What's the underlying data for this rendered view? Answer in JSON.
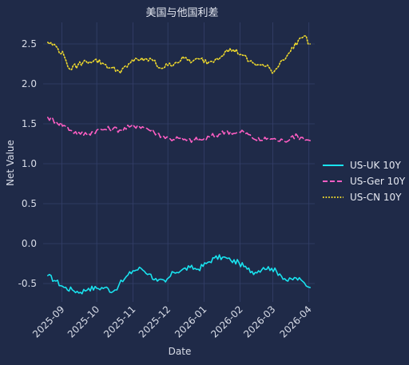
{
  "chart_data": {
    "type": "line",
    "title": "美国与他国利差",
    "xlabel": "Date",
    "ylabel": "Net Value",
    "x_range": [
      "2025-08-16",
      "2026-04-06"
    ],
    "ylim": [
      -0.73,
      2.77
    ],
    "y_ticks": [
      -0.5,
      0.0,
      0.5,
      1.0,
      1.5,
      2.0,
      2.5
    ],
    "y_tick_labels": [
      "-0.5",
      "0.0",
      "0.5",
      "1.0",
      "1.5",
      "2.0",
      "2.5"
    ],
    "x_ticks": [
      "2025-09-01",
      "2025-10-01",
      "2025-11-01",
      "2025-12-01",
      "2026-01-01",
      "2026-02-01",
      "2026-03-01",
      "2026-04-01"
    ],
    "x_tick_labels": [
      "2025-09",
      "2025-10",
      "2025-11",
      "2025-12",
      "2026-01",
      "2026-02",
      "2026-03",
      "2026-04"
    ],
    "grid": true,
    "legend_position": "right",
    "background": "#1f2a48",
    "series": [
      {
        "name": "US-UK 10Y",
        "color": "#19e3ef",
        "dash": "solid",
        "points": [
          [
            "2025-08-20",
            -0.4
          ],
          [
            "2025-08-27",
            -0.47
          ],
          [
            "2025-09-03",
            -0.55
          ],
          [
            "2025-09-10",
            -0.58
          ],
          [
            "2025-09-17",
            -0.61
          ],
          [
            "2025-09-24",
            -0.56
          ],
          [
            "2025-10-01",
            -0.56
          ],
          [
            "2025-10-08",
            -0.55
          ],
          [
            "2025-10-15",
            -0.6
          ],
          [
            "2025-10-20",
            -0.52
          ],
          [
            "2025-10-25",
            -0.44
          ],
          [
            "2025-11-01",
            -0.34
          ],
          [
            "2025-11-08",
            -0.31
          ],
          [
            "2025-11-15",
            -0.38
          ],
          [
            "2025-11-22",
            -0.47
          ],
          [
            "2025-11-29",
            -0.48
          ],
          [
            "2025-12-06",
            -0.36
          ],
          [
            "2025-12-13",
            -0.33
          ],
          [
            "2025-12-20",
            -0.3
          ],
          [
            "2025-12-27",
            -0.32
          ],
          [
            "2026-01-03",
            -0.25
          ],
          [
            "2026-01-10",
            -0.18
          ],
          [
            "2026-01-17",
            -0.17
          ],
          [
            "2026-01-24",
            -0.21
          ],
          [
            "2026-01-31",
            -0.24
          ],
          [
            "2026-02-07",
            -0.32
          ],
          [
            "2026-02-14",
            -0.36
          ],
          [
            "2026-02-21",
            -0.3
          ],
          [
            "2026-02-28",
            -0.31
          ],
          [
            "2026-03-07",
            -0.38
          ],
          [
            "2026-03-14",
            -0.47
          ],
          [
            "2026-03-21",
            -0.43
          ],
          [
            "2026-03-28",
            -0.49
          ],
          [
            "2026-04-02",
            -0.55
          ]
        ]
      },
      {
        "name": "US-Ger 10Y",
        "color": "#ff5ec4",
        "dash": "dashed",
        "points": [
          [
            "2025-08-20",
            1.58
          ],
          [
            "2025-08-27",
            1.53
          ],
          [
            "2025-09-03",
            1.48
          ],
          [
            "2025-09-10",
            1.41
          ],
          [
            "2025-09-17",
            1.37
          ],
          [
            "2025-09-24",
            1.38
          ],
          [
            "2025-10-01",
            1.42
          ],
          [
            "2025-10-08",
            1.43
          ],
          [
            "2025-10-15",
            1.44
          ],
          [
            "2025-10-22",
            1.42
          ],
          [
            "2025-10-29",
            1.46
          ],
          [
            "2025-11-05",
            1.48
          ],
          [
            "2025-11-12",
            1.45
          ],
          [
            "2025-11-19",
            1.4
          ],
          [
            "2025-11-26",
            1.35
          ],
          [
            "2025-12-03",
            1.31
          ],
          [
            "2025-12-10",
            1.32
          ],
          [
            "2025-12-17",
            1.29
          ],
          [
            "2025-12-24",
            1.3
          ],
          [
            "2025-12-31",
            1.3
          ],
          [
            "2026-01-07",
            1.34
          ],
          [
            "2026-01-14",
            1.37
          ],
          [
            "2026-01-21",
            1.41
          ],
          [
            "2026-01-28",
            1.38
          ],
          [
            "2026-02-04",
            1.4
          ],
          [
            "2026-02-11",
            1.33
          ],
          [
            "2026-02-18",
            1.29
          ],
          [
            "2026-02-25",
            1.32
          ],
          [
            "2026-03-04",
            1.3
          ],
          [
            "2026-03-11",
            1.28
          ],
          [
            "2026-03-18",
            1.35
          ],
          [
            "2026-03-25",
            1.33
          ],
          [
            "2026-04-02",
            1.29
          ]
        ]
      },
      {
        "name": "US-CN 10Y",
        "color": "#f2dc2c",
        "dash": "dotted",
        "points": [
          [
            "2025-08-20",
            2.52
          ],
          [
            "2025-08-27",
            2.47
          ],
          [
            "2025-09-03",
            2.35
          ],
          [
            "2025-09-08",
            2.18
          ],
          [
            "2025-09-15",
            2.24
          ],
          [
            "2025-09-22",
            2.28
          ],
          [
            "2025-09-29",
            2.3
          ],
          [
            "2025-10-06",
            2.26
          ],
          [
            "2025-10-13",
            2.2
          ],
          [
            "2025-10-20",
            2.16
          ],
          [
            "2025-10-27",
            2.21
          ],
          [
            "2025-11-03",
            2.32
          ],
          [
            "2025-11-10",
            2.29
          ],
          [
            "2025-11-17",
            2.31
          ],
          [
            "2025-11-24",
            2.2
          ],
          [
            "2025-12-01",
            2.23
          ],
          [
            "2025-12-08",
            2.27
          ],
          [
            "2025-12-15",
            2.32
          ],
          [
            "2025-12-22",
            2.28
          ],
          [
            "2025-12-29",
            2.31
          ],
          [
            "2026-01-05",
            2.27
          ],
          [
            "2026-01-12",
            2.32
          ],
          [
            "2026-01-19",
            2.4
          ],
          [
            "2026-01-26",
            2.43
          ],
          [
            "2026-02-02",
            2.37
          ],
          [
            "2026-02-09",
            2.28
          ],
          [
            "2026-02-16",
            2.24
          ],
          [
            "2026-02-23",
            2.22
          ],
          [
            "2026-03-02",
            2.15
          ],
          [
            "2026-03-09",
            2.3
          ],
          [
            "2026-03-16",
            2.4
          ],
          [
            "2026-03-23",
            2.55
          ],
          [
            "2026-03-28",
            2.6
          ],
          [
            "2026-04-02",
            2.5
          ]
        ]
      }
    ]
  }
}
